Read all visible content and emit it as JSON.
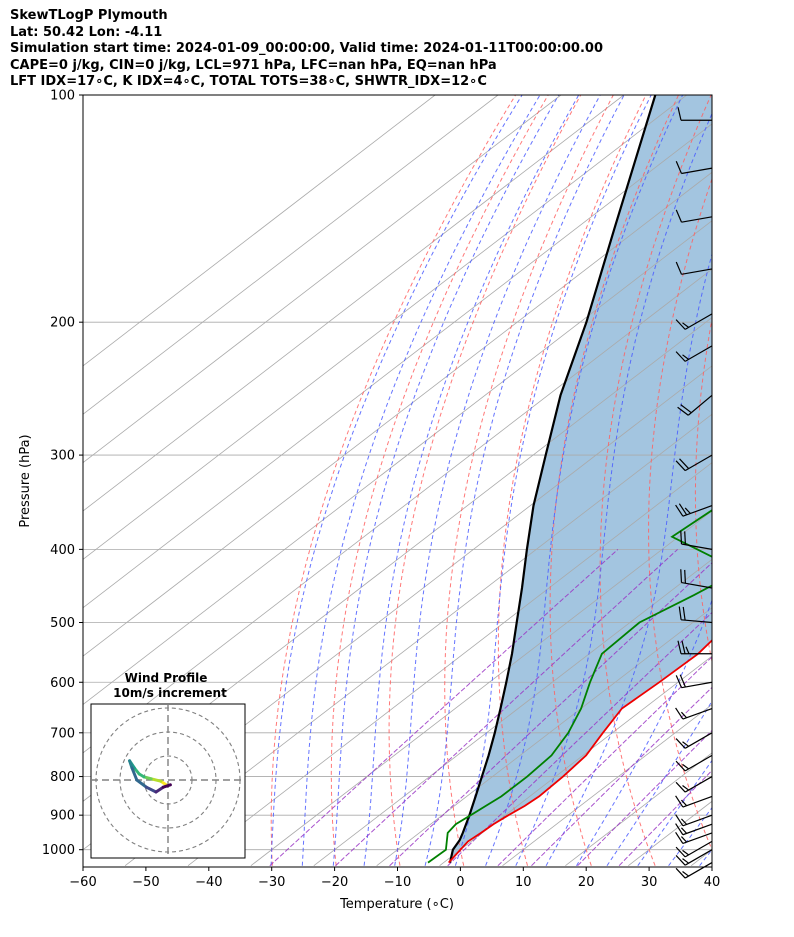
{
  "header": {
    "title": "SkewTLogP Plymouth",
    "location": "Lat: 50.42   Lon: -4.11",
    "times": "Simulation start time: 2024-01-09_00:00:00, Valid time: 2024-01-11T00:00:00.00",
    "indices1": "CAPE=0 j/kg, CIN=0 j/kg, LCL=971 hPa, LFC=nan hPa, EQ=nan hPa",
    "indices2": "LFT IDX=17∘C, K IDX=4∘C, TOTAL TOTS=38∘C, SHWTR_IDX=12∘C"
  },
  "colors": {
    "temperature": "#ee0000",
    "dewpoint": "#008000",
    "parcel": "#000000",
    "shade": "#a3c5e0",
    "dry_adiabat": "#ff6060",
    "moist_adiabat": "#4a5cff",
    "mixing_ratio": "#9a35c4",
    "isotherm": "#aaaaaa"
  },
  "chart_data": {
    "type": "line",
    "subtype": "skew-t log-p",
    "xlabel": "Temperature (∘C)",
    "ylabel": "Pressure (hPa)",
    "xlim": [
      -60,
      40
    ],
    "ylim": [
      1050,
      100
    ],
    "xticks": [
      -60,
      -50,
      -40,
      -30,
      -20,
      -10,
      0,
      10,
      20,
      30,
      40
    ],
    "yticks": [
      100,
      200,
      300,
      400,
      500,
      600,
      700,
      800,
      900,
      1000
    ],
    "grid": true,
    "series": [
      {
        "name": "temperature",
        "p": [
          1040,
          1000,
          975,
          950,
          925,
          900,
          875,
          850,
          800,
          750,
          700,
          650,
          600,
          550,
          500,
          450,
          415,
          380,
          350,
          320,
          300,
          280,
          260,
          240,
          220,
          200,
          180,
          165,
          150,
          140,
          130,
          125,
          115,
          110,
          100
        ],
        "t": [
          0.8,
          0,
          -0.5,
          -0.2,
          0,
          0.5,
          1.2,
          1.5,
          1.2,
          0.5,
          -1.5,
          -3.5,
          -3,
          -2.7,
          -4,
          -7.5,
          -11,
          -10,
          -9,
          -8,
          -7.5,
          -7.5,
          -7.5,
          -6.8,
          -5.2,
          -1.5,
          1.5,
          3.5,
          4,
          5,
          7,
          9,
          11,
          12,
          13.5
        ]
      },
      {
        "name": "dewpoint",
        "p": [
          1040,
          1000,
          950,
          925,
          900,
          875,
          850,
          800,
          750,
          700,
          650,
          600,
          550,
          500,
          460,
          430,
          420,
          385,
          350,
          320,
          300,
          280,
          250,
          220,
          200,
          180,
          150,
          140,
          120,
          110,
          100
        ],
        "t": [
          -2.5,
          -2.3,
          -5.5,
          -6,
          -5.5,
          -5,
          -4.5,
          -4.5,
          -5,
          -7,
          -10,
          -14,
          -18,
          -18.5,
          -15.5,
          -13.5,
          -16,
          -31,
          -30,
          -30.5,
          -31,
          -30.5,
          -29,
          -27,
          -25.5,
          -24.5,
          -25,
          -22,
          -16,
          -12,
          -9
        ]
      },
      {
        "name": "parcel",
        "p": [
          1040,
          1000,
          971,
          950,
          900,
          850,
          800,
          750,
          700,
          650,
          600,
          550,
          500,
          450,
          400,
          350,
          300,
          250,
          200,
          150,
          100
        ],
        "t": [
          1,
          -1.2,
          -2.1,
          -3.1,
          -5.7,
          -8.6,
          -11.7,
          -15,
          -18.7,
          -22.8,
          -27.3,
          -32.3,
          -38,
          -44.3,
          -51.5,
          -59.5,
          -68,
          -78,
          -89,
          -104,
          -125
        ]
      }
    ],
    "wind_barbs": [
      {
        "p": 1040,
        "dir": 240,
        "speed": 15
      },
      {
        "p": 1000,
        "dir": 240,
        "speed": 15
      },
      {
        "p": 975,
        "dir": 240,
        "speed": 15
      },
      {
        "p": 950,
        "dir": 250,
        "speed": 15
      },
      {
        "p": 925,
        "dir": 250,
        "speed": 15
      },
      {
        "p": 900,
        "dir": 250,
        "speed": 15
      },
      {
        "p": 850,
        "dir": 250,
        "speed": 15
      },
      {
        "p": 800,
        "dir": 240,
        "speed": 15
      },
      {
        "p": 750,
        "dir": 240,
        "speed": 15
      },
      {
        "p": 700,
        "dir": 240,
        "speed": 15
      },
      {
        "p": 650,
        "dir": 250,
        "speed": 15
      },
      {
        "p": 600,
        "dir": 260,
        "speed": 20
      },
      {
        "p": 550,
        "dir": 270,
        "speed": 25
      },
      {
        "p": 500,
        "dir": 275,
        "speed": 20
      },
      {
        "p": 450,
        "dir": 280,
        "speed": 20
      },
      {
        "p": 400,
        "dir": 280,
        "speed": 20
      },
      {
        "p": 350,
        "dir": 250,
        "speed": 25
      },
      {
        "p": 300,
        "dir": 240,
        "speed": 20
      },
      {
        "p": 250,
        "dir": 230,
        "speed": 20
      },
      {
        "p": 215,
        "dir": 240,
        "speed": 15
      },
      {
        "p": 195,
        "dir": 240,
        "speed": 15
      },
      {
        "p": 170,
        "dir": 260,
        "speed": 10
      },
      {
        "p": 145,
        "dir": 260,
        "speed": 10
      },
      {
        "p": 125,
        "dir": 260,
        "speed": 10
      },
      {
        "p": 108,
        "dir": 270,
        "speed": 10
      }
    ],
    "hodograph": {
      "title": "Wind Profile",
      "subtitle": "10m/s increment",
      "u": [
        -0.7,
        -0.5,
        -3,
        -7,
        -10,
        -12,
        -14,
        -16,
        -15,
        -13,
        -9,
        -5,
        -2,
        1
      ],
      "v": [
        -2.3,
        -2.2,
        -0.5,
        0.5,
        1.3,
        2.5,
        5,
        8,
        5,
        0,
        -3,
        -5,
        -3,
        -2
      ]
    }
  }
}
